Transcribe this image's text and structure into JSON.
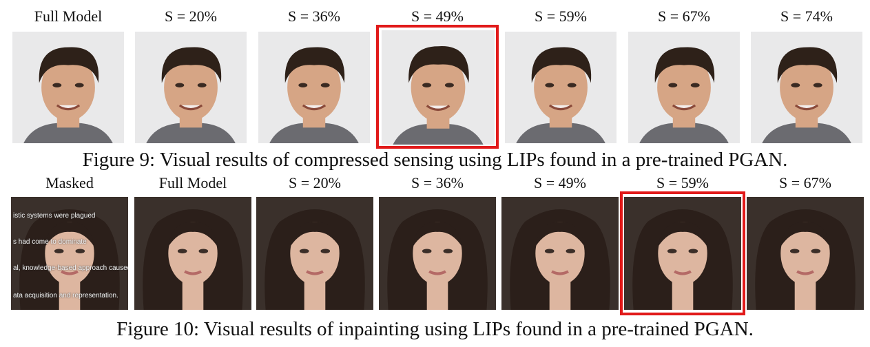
{
  "figure9": {
    "labels": [
      "Full Model",
      "S = 20%",
      "S = 36%",
      "S = 49%",
      "S = 59%",
      "S = 67%",
      "S = 74%"
    ],
    "caption": "Figure 9: Visual results of compressed sensing using LIPs found in a pre-trained PGAN.",
    "highlighted": "S = 49%"
  },
  "figure10": {
    "labels": [
      "Masked",
      "Full Model",
      "S = 20%",
      "S = 36%",
      "S = 49%",
      "S = 59%",
      "S = 67%"
    ],
    "caption": "Figure 10: Visual results of inpainting using LIPs found in a pre-trained PGAN.",
    "highlighted": "S = 59%",
    "mask_text": [
      "istic systems were plagued",
      "s had come to dominate",
      "al, knowledge-based approach caused",
      "ata acquisition and representation."
    ]
  },
  "colors": {
    "highlight": "#e11a1a",
    "skin_male": "#d6a585",
    "hair_male": "#2e2119",
    "skin_female": "#ddb6a0",
    "hair_female": "#2b1f1a"
  }
}
